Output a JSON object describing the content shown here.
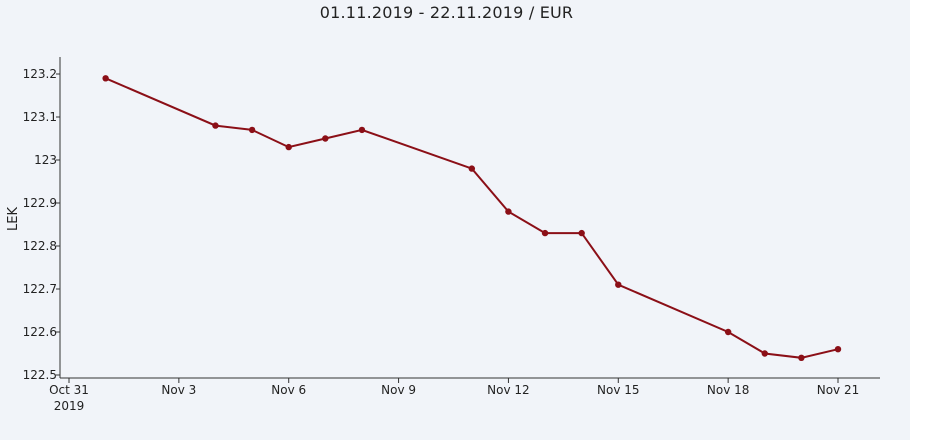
{
  "chart_data": {
    "type": "line",
    "title": "01.11.2019 - 22.11.2019 / EUR",
    "xlabel": "",
    "ylabel": "LEK",
    "x_tick_labels": [
      {
        "label": "Oct 31",
        "sub": "2019",
        "day": 0
      },
      {
        "label": "Nov 3",
        "day": 3
      },
      {
        "label": "Nov 6",
        "day": 6
      },
      {
        "label": "Nov 9",
        "day": 9
      },
      {
        "label": "Nov 12",
        "day": 12
      },
      {
        "label": "Nov 15",
        "day": 15
      },
      {
        "label": "Nov 18",
        "day": 18
      },
      {
        "label": "Nov 21",
        "day": 21
      }
    ],
    "y_ticks": [
      "122.5",
      "122.6",
      "122.7",
      "122.8",
      "122.9",
      "123",
      "123.1",
      "123.2"
    ],
    "ylim": [
      122.5,
      123.25
    ],
    "grid": false,
    "series": [
      {
        "color": "#8b0f17",
        "points": [
          {
            "date": "Nov 1",
            "y": 123.19
          },
          {
            "date": "Nov 4",
            "y": 123.08
          },
          {
            "date": "Nov 5",
            "y": 123.07
          },
          {
            "date": "Nov 6",
            "y": 123.03
          },
          {
            "date": "Nov 7",
            "y": 123.05
          },
          {
            "date": "Nov 8",
            "y": 123.07
          },
          {
            "date": "Nov 11",
            "y": 122.98
          },
          {
            "date": "Nov 12",
            "y": 122.88
          },
          {
            "date": "Nov 13",
            "y": 122.83
          },
          {
            "date": "Nov 14",
            "y": 122.83
          },
          {
            "date": "Nov 15",
            "y": 122.71
          },
          {
            "date": "Nov 18",
            "y": 122.6
          },
          {
            "date": "Nov 19",
            "y": 122.55
          },
          {
            "date": "Nov 20",
            "y": 122.54
          },
          {
            "date": "Nov 21",
            "y": 122.56
          }
        ]
      }
    ]
  }
}
